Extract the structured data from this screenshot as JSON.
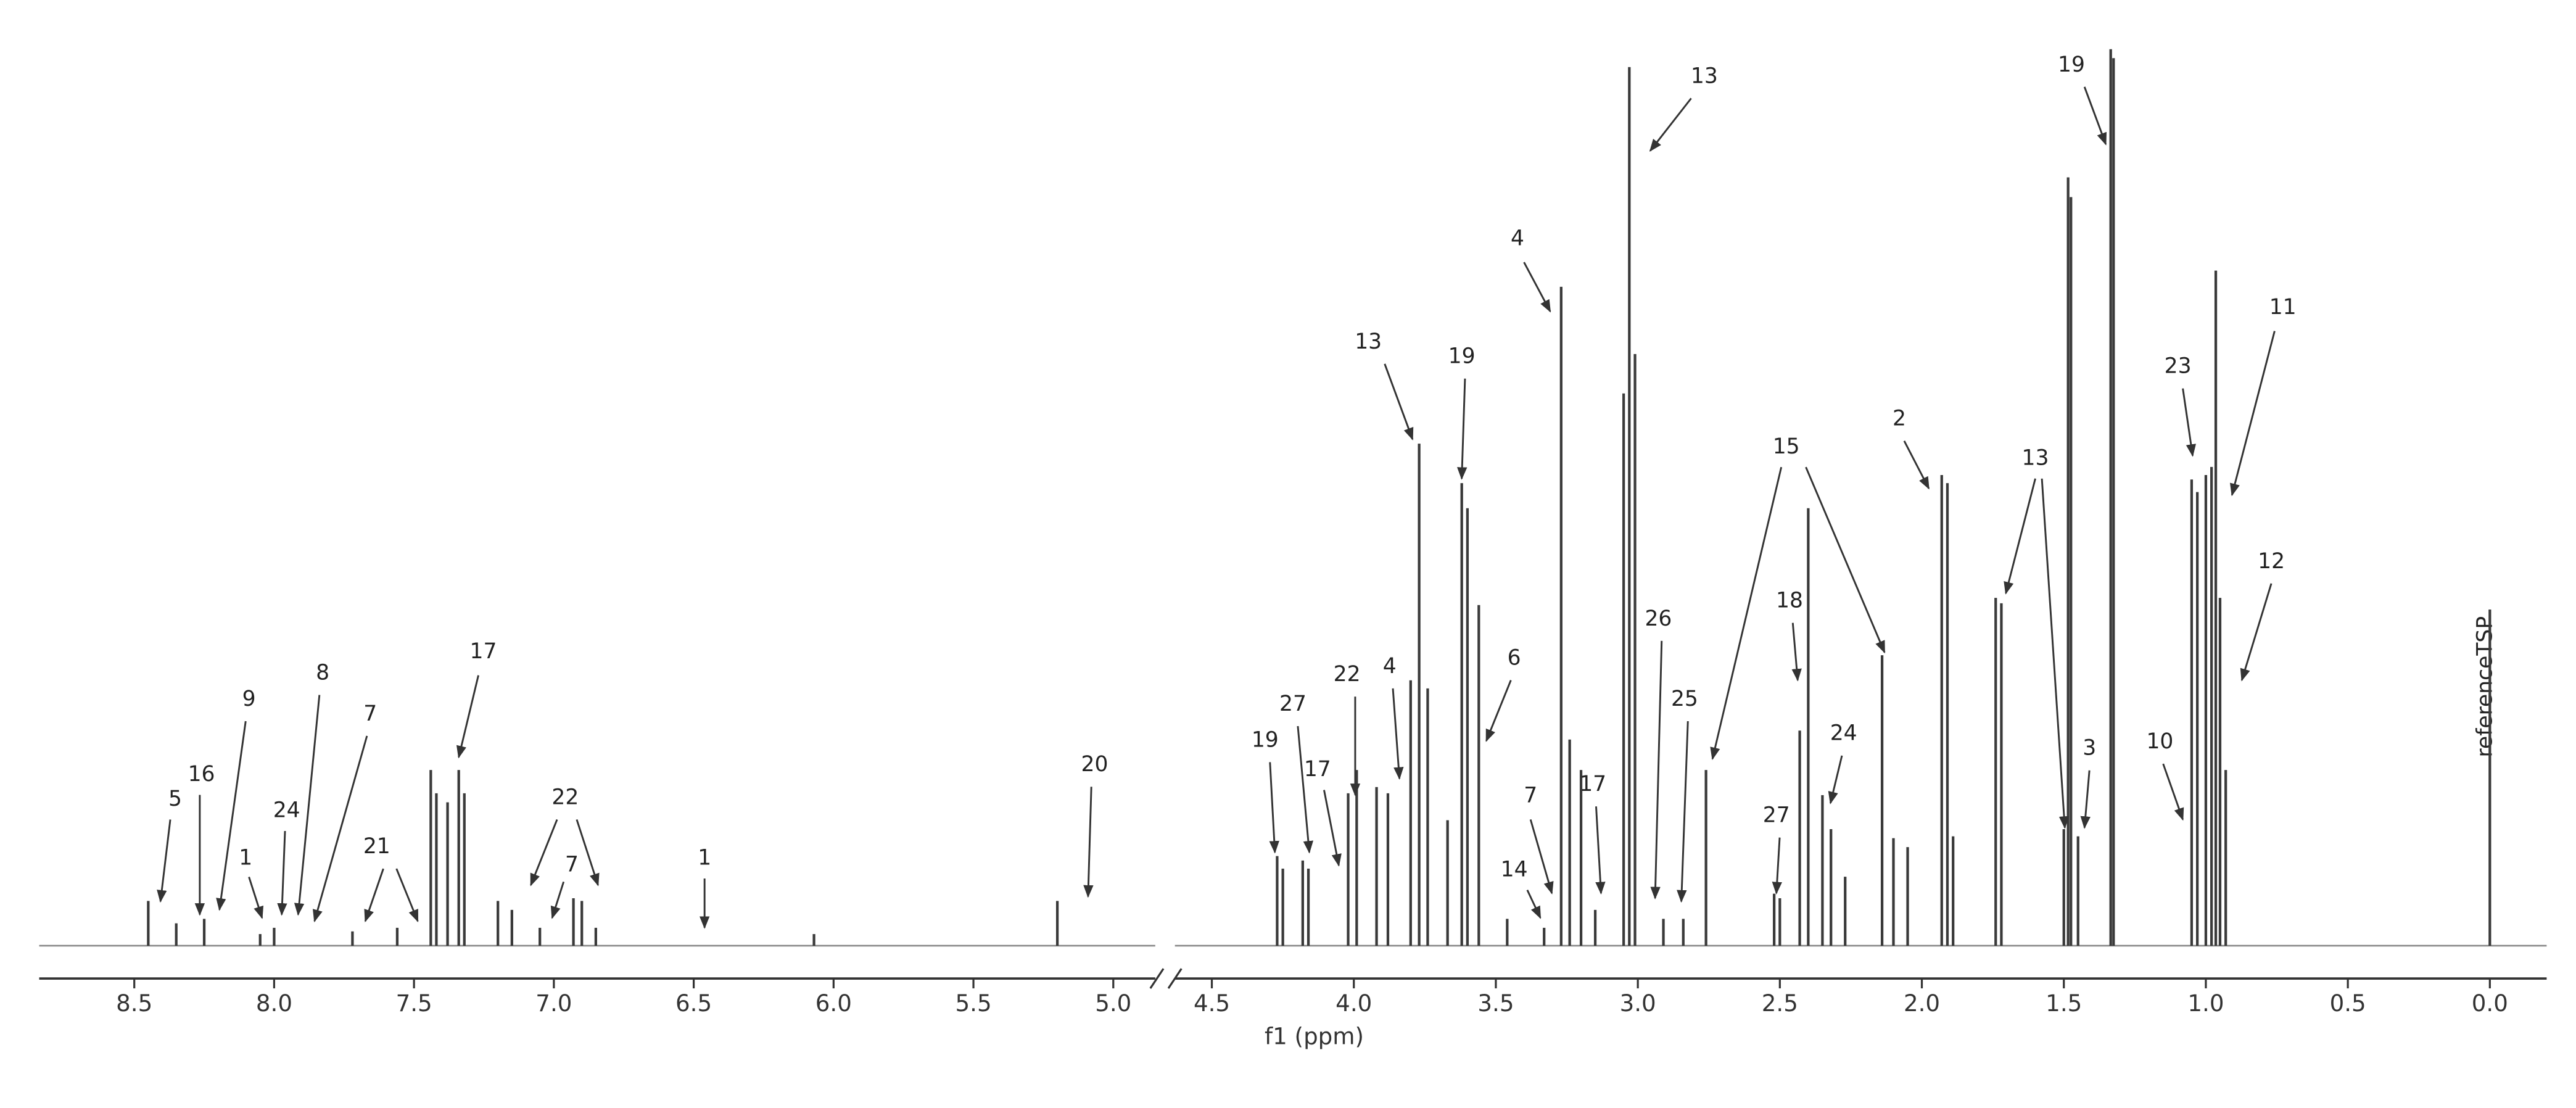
{
  "chart_data": {
    "type": "spectrum",
    "x_label": "f1 (ppm)",
    "reference_label": "referenceTSP",
    "color": "#3a3a3a",
    "ylim": [
      0,
      100
    ],
    "x_segments": [
      {
        "xlim": [
          8.84,
          4.85
        ],
        "xticks": [
          8.5,
          {
            "value": 8,
            "label": "8.0"
          },
          7.5,
          {
            "value": 7,
            "label": "7.0"
          },
          6.5,
          {
            "value": 6,
            "label": "6.0"
          },
          5.5,
          {
            "value": 5,
            "label": "5.0"
          }
        ]
      },
      {
        "xlim": [
          4.63,
          -0.2
        ],
        "xticks": [
          4.5,
          {
            "value": 4,
            "label": "4.0"
          },
          3.5,
          {
            "value": 3,
            "label": "3.0"
          },
          2.5,
          {
            "value": 2,
            "label": "2.0"
          },
          1.5,
          {
            "value": 1,
            "label": "1.0"
          },
          0.5,
          {
            "value": 0,
            "label": "0.0"
          }
        ]
      }
    ],
    "x": [
      8.45,
      8.35,
      8.25,
      8.05,
      8.0,
      7.72,
      7.56,
      7.44,
      7.42,
      7.38,
      7.34,
      7.32,
      7.2,
      7.15,
      7.05,
      6.93,
      6.9,
      6.85,
      6.07,
      5.2,
      4.27,
      4.25,
      4.18,
      4.16,
      4.02,
      3.99,
      3.92,
      3.88,
      3.8,
      3.77,
      3.74,
      3.67,
      3.62,
      3.6,
      3.56,
      3.46,
      3.33,
      3.27,
      3.24,
      3.2,
      3.15,
      3.05,
      3.03,
      3.01,
      2.91,
      2.84,
      2.76,
      2.52,
      2.5,
      2.43,
      2.4,
      2.35,
      2.32,
      2.27,
      2.14,
      2.1,
      2.05,
      1.93,
      1.91,
      1.89,
      1.74,
      1.72,
      1.5,
      1.485,
      1.475,
      1.45,
      1.335,
      1.325,
      1.05,
      1.03,
      1.0,
      0.98,
      0.965,
      0.95,
      0.93,
      0.0
    ],
    "values": [
      5,
      2.5,
      3,
      1.3,
      2,
      1.6,
      2,
      19.6,
      17,
      16,
      19.6,
      17,
      5,
      4,
      2,
      5.3,
      5,
      2,
      1.3,
      5,
      10,
      8.6,
      9.5,
      8.6,
      17,
      19.6,
      17.7,
      17,
      29.6,
      56,
      28.7,
      14,
      51.6,
      48.8,
      38,
      3,
      2,
      73.5,
      23,
      19.6,
      4,
      61.6,
      98,
      66,
      3,
      3,
      19.6,
      5.8,
      5.3,
      24,
      48.8,
      16.8,
      13,
      7.7,
      32.4,
      12,
      11,
      52.5,
      51.6,
      12.2,
      38.8,
      38.2,
      13,
      85.7,
      83.5,
      12.2,
      100,
      99,
      52,
      50.6,
      52.5,
      53.4,
      75.3,
      38.8,
      19.6,
      37.5
    ],
    "annotations": [
      "5",
      "16",
      "9",
      "1",
      "24",
      "8",
      "7",
      "21",
      "17",
      "22",
      "7",
      "1",
      "20",
      "19",
      "27",
      "17",
      "22",
      "4",
      "13",
      "19",
      "6",
      "4",
      "13",
      "7",
      "14",
      "17",
      "26",
      "25",
      "27",
      "18",
      "24",
      "15",
      "2",
      "13",
      "3",
      "19",
      "23",
      "11",
      "12",
      "10"
    ]
  }
}
